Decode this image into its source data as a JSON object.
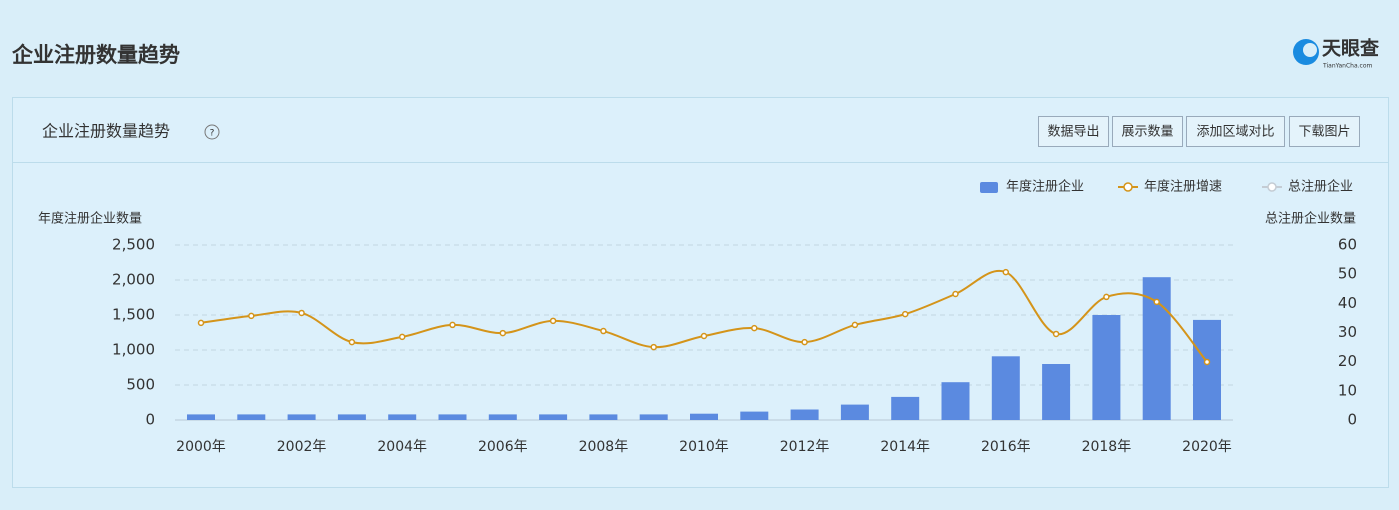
{
  "page": {
    "title": "企业注册数量趋势",
    "logo": "天眼查",
    "logo_sub": "TianYanCha.com",
    "card_title": "企业注册数量趋势",
    "buttons": [
      "数据导出",
      "展示数量",
      "添加区域对比",
      "下载图片"
    ]
  },
  "chart_data": {
    "type": "bar_line",
    "ylabel": "年度注册企业数量",
    "y2label": "总注册企业数量",
    "categories": [
      "2000年",
      null,
      "2002年",
      null,
      "2004年",
      null,
      "2006年",
      null,
      "2008年",
      null,
      "2010年",
      null,
      "2012年",
      null,
      "2014年",
      null,
      "2016年",
      null,
      "2018年",
      null,
      "2020年"
    ],
    "series": [
      {
        "name": "年度注册企业",
        "type": "bar",
        "color": "#5b8ae0",
        "values": [
          80,
          80,
          80,
          80,
          80,
          80,
          80,
          80,
          80,
          80,
          90,
          120,
          150,
          220,
          330,
          540,
          910,
          800,
          1500,
          2040,
          1430
        ]
      },
      {
        "name": "年度注册增速",
        "type": "line",
        "axis": "y2",
        "color": "#d4941a",
        "values": [
          33.3,
          35.7,
          36.7,
          26.7,
          28.5,
          32.6,
          29.8,
          34,
          30.5,
          25,
          28.8,
          31.5,
          26.7,
          32.6,
          36.3,
          43.2,
          50.7,
          29.5,
          42.2,
          40.5,
          19.9
        ]
      },
      {
        "name": "总注册企业",
        "type": "line",
        "axis": "y2",
        "color": "#c4ccd4",
        "values": [
          null,
          null,
          null,
          null,
          null,
          null,
          null,
          null,
          null,
          null,
          null,
          null,
          null,
          null,
          null,
          null,
          null,
          null,
          null,
          null,
          null
        ]
      }
    ],
    "ylim": [
      0,
      2500
    ],
    "yticks": [
      0,
      500,
      {
        "value": 1000,
        "label": "1,000"
      },
      {
        "value": 1500,
        "label": "1,500"
      },
      {
        "value": 2000,
        "label": "2,000"
      },
      {
        "value": 2500,
        "label": "2,500"
      }
    ],
    "y2lim": [
      0,
      60
    ],
    "y2ticks": [
      0,
      10,
      20,
      30,
      40,
      50,
      60
    ],
    "grid": true
  }
}
